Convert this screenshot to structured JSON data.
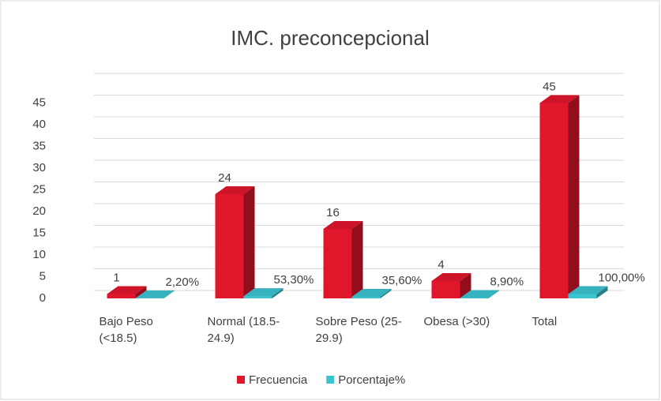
{
  "chart_data": {
    "type": "bar3d",
    "title": "IMC. preconcepcional",
    "categories": [
      "Bajo Peso (<18.5)",
      "Normal (18.5-24.9)",
      "Sobre Peso (25-29.9)",
      "Obesa (>30)",
      "Total"
    ],
    "series": [
      {
        "name": "Frecuencia",
        "color": "#e0162b",
        "values": [
          1,
          24,
          16,
          4,
          45
        ]
      },
      {
        "name": "Porcentaje%",
        "color": "#3cc3d0",
        "values": [
          0.022,
          0.533,
          0.356,
          0.089,
          1.0
        ],
        "value_labels": [
          "2,20%",
          "53,30%",
          "35,60%",
          "8,90%",
          "100,00%"
        ]
      }
    ],
    "ylim": [
      0,
      50
    ],
    "yticks": [
      0,
      5,
      10,
      15,
      20,
      25,
      30,
      35,
      40,
      45
    ],
    "grid": true,
    "legend": "bottom"
  }
}
